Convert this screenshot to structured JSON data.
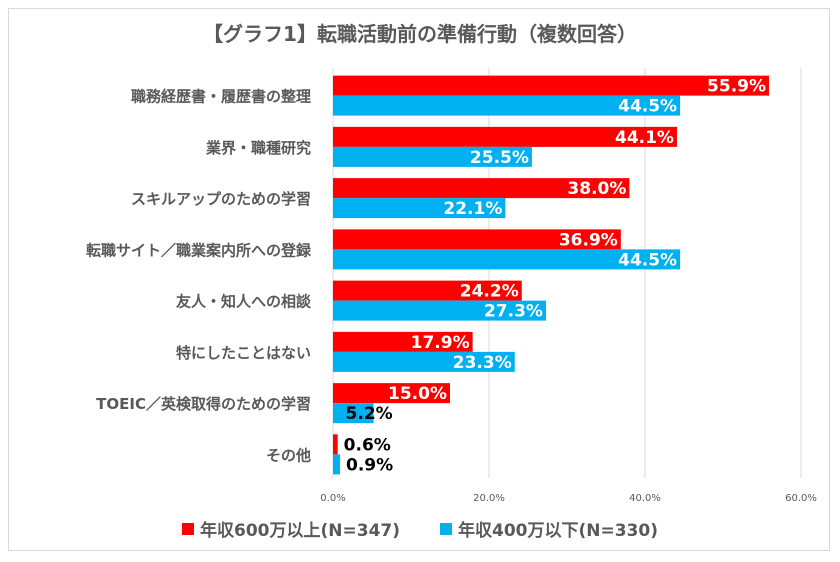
{
  "chart_data": {
    "type": "bar",
    "orientation": "horizontal",
    "title": "【グラフ1】転職活動前の準備行動（複数回答）",
    "categories": [
      "職務経歴書・履歴書の整理",
      "業界・職種研究",
      "スキルアップのための学習",
      "転職サイト／職業案内所への登録",
      "友人・知人への相談",
      "特にしたことはない",
      "TOEIC／英検取得のための学習",
      "その他"
    ],
    "series": [
      {
        "name": "年収600万以上(N=347)",
        "color": "#ff0000",
        "values": [
          55.9,
          44.1,
          38.0,
          36.9,
          24.2,
          17.9,
          15.0,
          0.6
        ]
      },
      {
        "name": "年収400万以下(N=330)",
        "color": "#00b0f0",
        "values": [
          44.5,
          25.5,
          22.1,
          44.5,
          27.3,
          23.3,
          5.2,
          0.9
        ]
      }
    ],
    "data_labels": [
      [
        "55.9%",
        "44.1%",
        "38.0%",
        "36.9%",
        "24.2%",
        "17.9%",
        "15.0%",
        "0.6%"
      ],
      [
        "44.5%",
        "25.5%",
        "22.1%",
        "44.5%",
        "27.3%",
        "23.3%",
        "5.2%",
        "0.9%"
      ]
    ],
    "xlim": [
      0,
      60
    ],
    "xticks": [
      "0.0%",
      "20.0%",
      "40.0%",
      "60.0%"
    ],
    "grid": true,
    "legend": "bottom"
  }
}
